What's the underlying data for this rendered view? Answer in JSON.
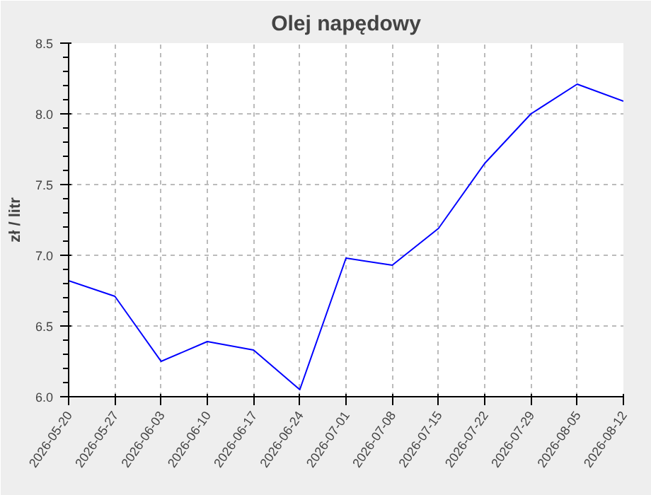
{
  "chart_data": {
    "type": "line",
    "title": "Olej napędowy",
    "ylabel": "zł / litr",
    "x": [
      "2026-05-20",
      "2026-05-27",
      "2026-06-03",
      "2026-06-10",
      "2026-06-17",
      "2026-06-24",
      "2026-07-01",
      "2026-07-08",
      "2026-07-15",
      "2026-07-22",
      "2026-07-29",
      "2026-08-05",
      "2026-08-12"
    ],
    "series": [
      {
        "color": "#0000ff",
        "values": [
          6.82,
          6.71,
          6.25,
          6.39,
          6.33,
          6.05,
          6.98,
          6.93,
          7.19,
          7.65,
          8.0,
          8.21,
          8.09
        ]
      }
    ],
    "xlim": [
      "2026-05-20",
      "2026-08-12"
    ],
    "xticks": [
      "2026-05-20",
      "2026-05-27",
      "2026-06-03",
      "2026-06-10",
      "2026-06-17",
      "2026-06-24",
      "2026-07-01",
      "2026-07-08",
      "2026-07-15",
      "2026-07-22",
      "2026-07-29",
      "2026-08-05",
      "2026-08-12"
    ],
    "ylim": [
      6.0,
      8.5
    ],
    "yticks": [
      {
        "value": 6.0,
        "label": "6.0"
      },
      {
        "value": 6.5,
        "label": "6.5"
      },
      {
        "value": 7.0,
        "label": "7.0"
      },
      {
        "value": 7.5,
        "label": "7.5"
      },
      {
        "value": 8.0,
        "label": "8.0"
      },
      {
        "value": 8.5,
        "label": "8.5"
      }
    ],
    "grid": true,
    "line_style": "solid",
    "marker": "none"
  }
}
